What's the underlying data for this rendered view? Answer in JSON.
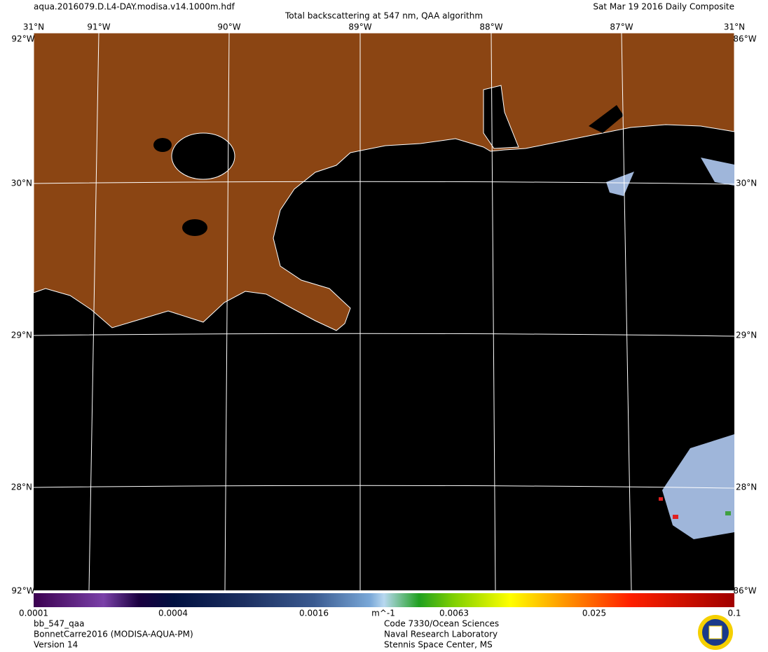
{
  "header": {
    "file": "aqua.2016079.D.L4-DAY.modisa.v14.1000m.hdf",
    "title": "Total backscattering at 547 nm, QAA algorithm",
    "date": "Sat Mar 19 2016 Daily Composite"
  },
  "graticule": {
    "top": [
      "31°N",
      "91°W",
      "90°W",
      "89°W",
      "88°W",
      "87°W",
      "31°N"
    ],
    "left": [
      "30°N",
      "29°N",
      "28°N"
    ],
    "right": [
      "30°N",
      "29°N",
      "28°N"
    ],
    "corners": [
      "92°W",
      "86°W",
      "92°W",
      "86°W"
    ]
  },
  "colorbar": {
    "labels": [
      "0.0001",
      "0.0004",
      "0.0016",
      "0.0063",
      "0.025",
      "0.1"
    ],
    "units": "m^-1"
  },
  "footer": {
    "left": [
      "bb_547_qaa",
      "BonnetCarre2016 (MODISA-AQUA-PM)",
      "Version 14"
    ],
    "center": [
      "Code 7330/Ocean Sciences",
      "Naval Research Laboratory",
      "Stennis Space Center, MS"
    ]
  }
}
